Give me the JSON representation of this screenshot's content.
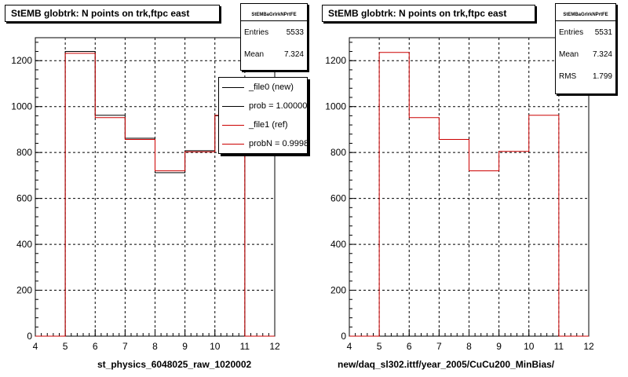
{
  "chart_data": [
    {
      "type": "histogram",
      "title": "StEMB globtrk: N points on trk,ftpc east",
      "xlabel": "st_physics_6048025_raw_1020002",
      "ylabel": "",
      "xlim": [
        4,
        12
      ],
      "ylim": [
        0,
        1300
      ],
      "xticks": [
        "4",
        "5",
        "6",
        "7",
        "8",
        "9",
        "10",
        "11",
        "12"
      ],
      "yticks": [
        "0",
        "200",
        "400",
        "600",
        "800",
        "1000",
        "1200"
      ],
      "bin_edges": [
        4,
        5,
        6,
        7,
        8,
        9,
        10,
        11,
        12
      ],
      "grid": true,
      "series": [
        {
          "name": "_file0 (new)",
          "color": "#000000",
          "values": [
            0,
            1240,
            962,
            862,
            712,
            808,
            960,
            0
          ]
        },
        {
          "name": "_file1 (ref)",
          "color": "#cc0000",
          "values": [
            0,
            1232,
            952,
            857,
            720,
            803,
            962,
            0
          ]
        }
      ],
      "stats": {
        "name": "StEMBaGrIrkNPrtFE",
        "rows": [
          {
            "label": "Entries",
            "value": "5533"
          },
          {
            "label": "Mean",
            "value": "7.324"
          }
        ]
      },
      "legend": {
        "placement": "top-right",
        "entries": [
          {
            "text": "_file0 (new)",
            "color": "#000000"
          },
          {
            "text": "prob = 1.000000",
            "color": "#000000"
          },
          {
            "text": "_file1 (ref)",
            "color": "#cc0000"
          },
          {
            "text": "probN = 0.99988",
            "color": "#cc0000"
          }
        ]
      }
    },
    {
      "type": "histogram",
      "title": "StEMB globtrk: N points on trk,ftpc east",
      "xlabel": "new/daq_sl302.ittf/year_2005/CuCu200_MinBias/",
      "ylabel": "",
      "xlim": [
        4,
        12
      ],
      "ylim": [
        0,
        1300
      ],
      "xticks": [
        "4",
        "5",
        "6",
        "7",
        "8",
        "9",
        "10",
        "11",
        "12"
      ],
      "yticks": [
        "0",
        "200",
        "400",
        "600",
        "800",
        "1000",
        "1200"
      ],
      "bin_edges": [
        4,
        5,
        6,
        7,
        8,
        9,
        10,
        11,
        12
      ],
      "grid": true,
      "series": [
        {
          "name": "",
          "color": "#cc0000",
          "values": [
            0,
            1236,
            952,
            857,
            720,
            805,
            962,
            0
          ]
        }
      ],
      "stats": {
        "name": "StEMBaGrIrkNPrtFE",
        "rows": [
          {
            "label": "Entries",
            "value": "5531"
          },
          {
            "label": "Mean",
            "value": "7.324"
          },
          {
            "label": "RMS",
            "value": "1.799"
          }
        ]
      }
    }
  ]
}
